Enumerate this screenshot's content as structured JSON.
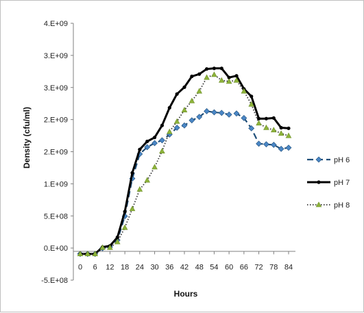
{
  "chart_data": {
    "type": "line",
    "title": "",
    "xlabel": "Hours",
    "ylabel": "Density (cfu/ml)",
    "x_ticks": [
      "0",
      "6",
      "12",
      "18",
      "24",
      "30",
      "36",
      "42",
      "48",
      "54",
      "60",
      "66",
      "72",
      "78",
      "84"
    ],
    "y_ticks": [
      "-5.E+08",
      "0.E+00",
      "5.E+08",
      "1.E+09",
      "2.E+09",
      "2.E+09",
      "3.E+09",
      "3.E+09",
      "4.E+09"
    ],
    "xlim": [
      0,
      84
    ],
    "ylim": [
      -500000000,
      4000000000
    ],
    "grid": false,
    "legend_position": "right",
    "x": [
      0,
      3,
      6,
      9,
      12,
      15,
      18,
      21,
      24,
      27,
      30,
      33,
      36,
      39,
      42,
      45,
      48,
      51,
      54,
      57,
      60,
      63,
      66,
      69,
      72,
      75,
      78,
      81,
      84
    ],
    "series": [
      {
        "name": "pH 6",
        "color": "#1f4e79",
        "marker_color": "#4a86c5",
        "style": "dashed",
        "marker": "diamond",
        "values": [
          -40000000,
          -40000000,
          -40000000,
          60000000,
          80000000,
          200000000,
          620000000,
          1280000000,
          1710000000,
          1830000000,
          1900000000,
          1950000000,
          2050000000,
          2170000000,
          2210000000,
          2300000000,
          2360000000,
          2460000000,
          2440000000,
          2430000000,
          2400000000,
          2420000000,
          2340000000,
          2160000000,
          1890000000,
          1880000000,
          1870000000,
          1800000000,
          1820000000
        ]
      },
      {
        "name": "pH 7",
        "color": "#000000",
        "marker_color": "#000000",
        "style": "solid",
        "marker": "circle",
        "values": [
          -40000000,
          -40000000,
          -40000000,
          80000000,
          100000000,
          250000000,
          700000000,
          1380000000,
          1790000000,
          1930000000,
          2000000000,
          2210000000,
          2520000000,
          2760000000,
          2880000000,
          3070000000,
          3110000000,
          3200000000,
          3210000000,
          3210000000,
          3050000000,
          3080000000,
          2850000000,
          2720000000,
          2330000000,
          2330000000,
          2340000000,
          2170000000,
          2160000000
        ]
      },
      {
        "name": "pH 8",
        "color": "#333333",
        "marker_color": "#8db33a",
        "style": "dotted",
        "marker": "triangle",
        "values": [
          -40000000,
          -40000000,
          -40000000,
          70000000,
          70000000,
          170000000,
          420000000,
          750000000,
          1090000000,
          1250000000,
          1480000000,
          1760000000,
          2100000000,
          2280000000,
          2480000000,
          2640000000,
          2810000000,
          3050000000,
          3100000000,
          3000000000,
          2980000000,
          3000000000,
          2810000000,
          2580000000,
          2250000000,
          2170000000,
          2130000000,
          2070000000,
          2030000000
        ]
      }
    ]
  }
}
